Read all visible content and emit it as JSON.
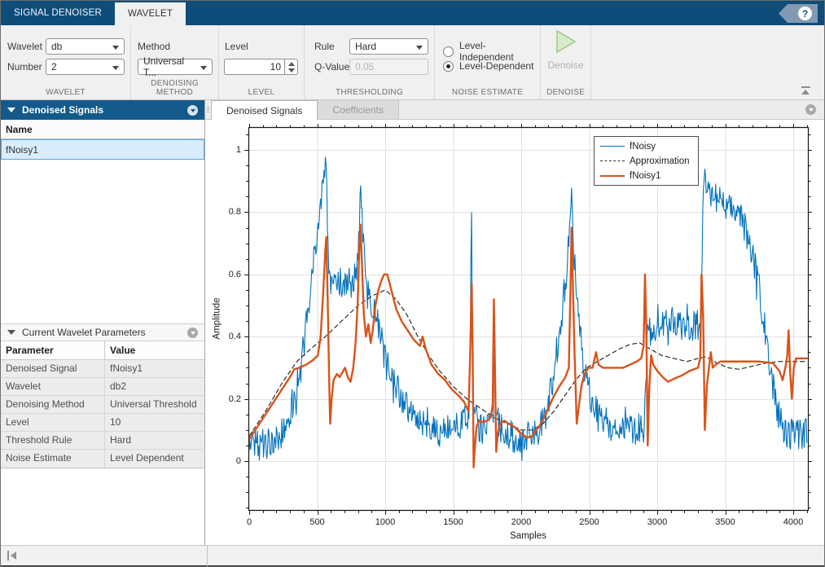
{
  "app": {
    "tabs": [
      {
        "label": "SIGNAL DENOISER",
        "active": false
      },
      {
        "label": "WAVELET",
        "active": true
      }
    ],
    "help_label": "?"
  },
  "toolstrip": {
    "wavelet": {
      "label": "WAVELET",
      "wavelet_label": "Wavelet",
      "wavelet_value": "db",
      "number_label": "Number",
      "number_value": "2"
    },
    "denoising_method": {
      "label": "DENOISING METHOD",
      "method_label": "Method",
      "method_value": "Universal T..."
    },
    "level": {
      "label": "LEVEL",
      "level_label": "Level",
      "level_value": "10"
    },
    "thresholding": {
      "label": "THRESHOLDING",
      "rule_label": "Rule",
      "rule_value": "Hard",
      "qvalue_label": "Q-Value",
      "qvalue_value": "0.05"
    },
    "noise_estimate": {
      "label": "NOISE ESTIMATE",
      "options": [
        {
          "label": "Level-Independent",
          "selected": false
        },
        {
          "label": "Level-Dependent",
          "selected": true
        }
      ]
    },
    "denoise": {
      "label": "DENOISE",
      "button_label": "Denoise",
      "enabled": false
    }
  },
  "left_panel": {
    "signals_panel": {
      "title": "Denoised Signals",
      "column_header": "Name",
      "rows": [
        {
          "name": "fNoisy1",
          "selected": true
        }
      ]
    },
    "parameters_panel": {
      "title": "Current Wavelet Parameters",
      "columns": [
        "Parameter",
        "Value"
      ],
      "rows": [
        [
          "Denoised Signal",
          "fNoisy1"
        ],
        [
          "Wavelet",
          "db2"
        ],
        [
          "Denoising Method",
          "Universal Threshold"
        ],
        [
          "Level",
          "10"
        ],
        [
          "Threshold Rule",
          "Hard"
        ],
        [
          "Noise Estimate",
          "Level Dependent"
        ]
      ]
    }
  },
  "document": {
    "tabs": [
      {
        "label": "Denoised Signals",
        "active": true
      },
      {
        "label": "Coefficients",
        "active": false
      }
    ]
  },
  "chart_data": {
    "type": "line",
    "title": "",
    "xlabel": "Samples",
    "ylabel": "Amplitude",
    "xlim": [
      0,
      4100
    ],
    "ylim": [
      -0.16,
      1.07
    ],
    "x_ticks": [
      0,
      500,
      1000,
      1500,
      2000,
      2500,
      3000,
      3500,
      4000
    ],
    "y_ticks": [
      0,
      0.2,
      0.4,
      0.6,
      0.8,
      1
    ],
    "x_minor_step": 100,
    "y_minor_step": 0.05,
    "grid": true,
    "legend_position": "north",
    "grid_color": "#e2e2e2",
    "series": [
      {
        "name": "fNoisy",
        "color": "#0072BD",
        "style": "solid",
        "width": 1.1,
        "noise_amplitude": 0.05,
        "noise_step": 5,
        "points": [
          [
            0,
            0.06
          ],
          [
            80,
            0.05
          ],
          [
            160,
            0.06
          ],
          [
            230,
            0.08
          ],
          [
            300,
            0.14
          ],
          [
            350,
            0.2
          ],
          [
            410,
            0.4
          ],
          [
            460,
            0.6
          ],
          [
            520,
            0.8
          ],
          [
            550,
            0.9
          ],
          [
            566,
            0.97
          ],
          [
            578,
            0.72
          ],
          [
            590,
            0.58
          ],
          [
            610,
            0.55
          ],
          [
            650,
            0.58
          ],
          [
            700,
            0.56
          ],
          [
            750,
            0.55
          ],
          [
            785,
            0.6
          ],
          [
            805,
            0.7
          ],
          [
            820,
            0.87
          ],
          [
            838,
            0.72
          ],
          [
            860,
            0.6
          ],
          [
            885,
            0.52
          ],
          [
            920,
            0.47
          ],
          [
            960,
            0.42
          ],
          [
            1000,
            0.34
          ],
          [
            1050,
            0.27
          ],
          [
            1100,
            0.22
          ],
          [
            1160,
            0.17
          ],
          [
            1240,
            0.12
          ],
          [
            1320,
            0.1
          ],
          [
            1400,
            0.09
          ],
          [
            1480,
            0.1
          ],
          [
            1560,
            0.12
          ],
          [
            1615,
            0.14
          ],
          [
            1626,
            0.35
          ],
          [
            1633,
            0.92
          ],
          [
            1640,
            0.35
          ],
          [
            1655,
            0.14
          ],
          [
            1700,
            0.1
          ],
          [
            1760,
            0.11
          ],
          [
            1796,
            0.13
          ],
          [
            1802,
            0.52
          ],
          [
            1809,
            0.14
          ],
          [
            1860,
            0.1
          ],
          [
            1930,
            0.08
          ],
          [
            2000,
            0.07
          ],
          [
            2060,
            0.08
          ],
          [
            2120,
            0.1
          ],
          [
            2180,
            0.15
          ],
          [
            2230,
            0.25
          ],
          [
            2280,
            0.4
          ],
          [
            2330,
            0.6
          ],
          [
            2368,
            0.85
          ],
          [
            2390,
            0.65
          ],
          [
            2420,
            0.45
          ],
          [
            2460,
            0.3
          ],
          [
            2510,
            0.2
          ],
          [
            2560,
            0.15
          ],
          [
            2640,
            0.12
          ],
          [
            2730,
            0.1
          ],
          [
            2820,
            0.1
          ],
          [
            2900,
            0.11
          ],
          [
            2918,
            0.25
          ],
          [
            2928,
            0.42
          ],
          [
            3000,
            0.42
          ],
          [
            3060,
            0.44
          ],
          [
            3120,
            0.45
          ],
          [
            3200,
            0.42
          ],
          [
            3260,
            0.43
          ],
          [
            3320,
            0.44
          ],
          [
            3332,
            0.68
          ],
          [
            3338,
            0.9
          ],
          [
            3400,
            0.86
          ],
          [
            3470,
            0.83
          ],
          [
            3540,
            0.81
          ],
          [
            3610,
            0.78
          ],
          [
            3660,
            0.73
          ],
          [
            3700,
            0.67
          ],
          [
            3740,
            0.58
          ],
          [
            3780,
            0.46
          ],
          [
            3820,
            0.34
          ],
          [
            3860,
            0.22
          ],
          [
            3900,
            0.13
          ],
          [
            3950,
            0.09
          ],
          [
            4020,
            0.08
          ],
          [
            4100,
            0.09
          ]
        ]
      },
      {
        "name": "Approximation",
        "color": "#2b2b2b",
        "style": "dashed",
        "width": 1.2,
        "points": [
          [
            0,
            0.08
          ],
          [
            120,
            0.16
          ],
          [
            240,
            0.25
          ],
          [
            350,
            0.32
          ],
          [
            450,
            0.36
          ],
          [
            560,
            0.4
          ],
          [
            680,
            0.45
          ],
          [
            800,
            0.5
          ],
          [
            900,
            0.53
          ],
          [
            1000,
            0.55
          ],
          [
            1080,
            0.52
          ],
          [
            1160,
            0.47
          ],
          [
            1240,
            0.4
          ],
          [
            1320,
            0.34
          ],
          [
            1400,
            0.29
          ],
          [
            1500,
            0.24
          ],
          [
            1600,
            0.2
          ],
          [
            1700,
            0.17
          ],
          [
            1800,
            0.14
          ],
          [
            1900,
            0.12
          ],
          [
            2000,
            0.1
          ],
          [
            2080,
            0.1
          ],
          [
            2160,
            0.12
          ],
          [
            2240,
            0.16
          ],
          [
            2320,
            0.21
          ],
          [
            2400,
            0.26
          ],
          [
            2480,
            0.3
          ],
          [
            2560,
            0.32
          ],
          [
            2640,
            0.34
          ],
          [
            2720,
            0.36
          ],
          [
            2800,
            0.375
          ],
          [
            2870,
            0.38
          ],
          [
            2950,
            0.36
          ],
          [
            3030,
            0.34
          ],
          [
            3120,
            0.33
          ],
          [
            3220,
            0.32
          ],
          [
            3300,
            0.33
          ],
          [
            3360,
            0.335
          ],
          [
            3440,
            0.315
          ],
          [
            3520,
            0.3
          ],
          [
            3600,
            0.295
          ],
          [
            3700,
            0.305
          ],
          [
            3800,
            0.315
          ],
          [
            3900,
            0.32
          ],
          [
            4000,
            0.32
          ],
          [
            4100,
            0.32
          ]
        ]
      },
      {
        "name": "fNoisy1",
        "color": "#D95319",
        "style": "solid",
        "width": 2.4,
        "points": [
          [
            0,
            0.07
          ],
          [
            60,
            0.11
          ],
          [
            120,
            0.15
          ],
          [
            180,
            0.19
          ],
          [
            240,
            0.23
          ],
          [
            300,
            0.27
          ],
          [
            330,
            0.295
          ],
          [
            370,
            0.3
          ],
          [
            420,
            0.31
          ],
          [
            470,
            0.325
          ],
          [
            505,
            0.34
          ],
          [
            525,
            0.4
          ],
          [
            545,
            0.55
          ],
          [
            560,
            0.68
          ],
          [
            567,
            0.72
          ],
          [
            577,
            0.52
          ],
          [
            587,
            0.28
          ],
          [
            595,
            0.12
          ],
          [
            606,
            0.2
          ],
          [
            620,
            0.26
          ],
          [
            645,
            0.28
          ],
          [
            665,
            0.27
          ],
          [
            685,
            0.285
          ],
          [
            705,
            0.3
          ],
          [
            725,
            0.27
          ],
          [
            745,
            0.255
          ],
          [
            765,
            0.3
          ],
          [
            782,
            0.38
          ],
          [
            797,
            0.5
          ],
          [
            812,
            0.72
          ],
          [
            818,
            0.76
          ],
          [
            830,
            0.62
          ],
          [
            843,
            0.47
          ],
          [
            858,
            0.4
          ],
          [
            876,
            0.44
          ],
          [
            893,
            0.38
          ],
          [
            908,
            0.42
          ],
          [
            928,
            0.5
          ],
          [
            950,
            0.55
          ],
          [
            972,
            0.58
          ],
          [
            992,
            0.6
          ],
          [
            1015,
            0.6
          ],
          [
            1045,
            0.55
          ],
          [
            1080,
            0.49
          ],
          [
            1120,
            0.45
          ],
          [
            1165,
            0.42
          ],
          [
            1210,
            0.39
          ],
          [
            1255,
            0.37
          ],
          [
            1275,
            0.4
          ],
          [
            1298,
            0.36
          ],
          [
            1340,
            0.31
          ],
          [
            1390,
            0.28
          ],
          [
            1440,
            0.26
          ],
          [
            1490,
            0.23
          ],
          [
            1540,
            0.21
          ],
          [
            1580,
            0.19
          ],
          [
            1612,
            0.16
          ],
          [
            1622,
            0.3
          ],
          [
            1630,
            0.45
          ],
          [
            1636,
            0.57
          ],
          [
            1643,
            0.35
          ],
          [
            1650,
            -0.02
          ],
          [
            1660,
            0.05
          ],
          [
            1672,
            0.11
          ],
          [
            1690,
            0.13
          ],
          [
            1720,
            0.125
          ],
          [
            1750,
            0.13
          ],
          [
            1775,
            0.14
          ],
          [
            1790,
            0.18
          ],
          [
            1799,
            0.52
          ],
          [
            1807,
            0.3
          ],
          [
            1816,
            0.03
          ],
          [
            1828,
            0.09
          ],
          [
            1845,
            0.12
          ],
          [
            1875,
            0.13
          ],
          [
            1910,
            0.12
          ],
          [
            1950,
            0.11
          ],
          [
            1995,
            0.09
          ],
          [
            2040,
            0.075
          ],
          [
            2080,
            0.08
          ],
          [
            2130,
            0.11
          ],
          [
            2180,
            0.15
          ],
          [
            2230,
            0.2
          ],
          [
            2280,
            0.24
          ],
          [
            2325,
            0.27
          ],
          [
            2350,
            0.3
          ],
          [
            2362,
            0.55
          ],
          [
            2370,
            0.75
          ],
          [
            2379,
            0.58
          ],
          [
            2392,
            0.35
          ],
          [
            2408,
            0.12
          ],
          [
            2422,
            0.17
          ],
          [
            2442,
            0.24
          ],
          [
            2465,
            0.28
          ],
          [
            2495,
            0.3
          ],
          [
            2525,
            0.3
          ],
          [
            2550,
            0.35
          ],
          [
            2568,
            0.31
          ],
          [
            2600,
            0.3
          ],
          [
            2650,
            0.3
          ],
          [
            2700,
            0.3
          ],
          [
            2750,
            0.3
          ],
          [
            2800,
            0.31
          ],
          [
            2850,
            0.32
          ],
          [
            2882,
            0.33
          ],
          [
            2900,
            0.37
          ],
          [
            2910,
            0.6
          ],
          [
            2920,
            0.42
          ],
          [
            2930,
            0.05
          ],
          [
            2942,
            0.24
          ],
          [
            2955,
            0.34
          ],
          [
            2970,
            0.31
          ],
          [
            3000,
            0.29
          ],
          [
            3040,
            0.27
          ],
          [
            3080,
            0.255
          ],
          [
            3125,
            0.265
          ],
          [
            3180,
            0.275
          ],
          [
            3240,
            0.29
          ],
          [
            3300,
            0.3
          ],
          [
            3316,
            0.33
          ],
          [
            3326,
            0.6
          ],
          [
            3338,
            0.46
          ],
          [
            3350,
            0.1
          ],
          [
            3365,
            0.24
          ],
          [
            3380,
            0.3
          ],
          [
            3394,
            0.35
          ],
          [
            3408,
            0.3
          ],
          [
            3430,
            0.31
          ],
          [
            3465,
            0.32
          ],
          [
            3550,
            0.32
          ],
          [
            3650,
            0.32
          ],
          [
            3750,
            0.32
          ],
          [
            3850,
            0.315
          ],
          [
            3898,
            0.29
          ],
          [
            3922,
            0.26
          ],
          [
            3942,
            0.3
          ],
          [
            3956,
            0.34
          ],
          [
            3966,
            0.42
          ],
          [
            3978,
            0.28
          ],
          [
            3990,
            0.2
          ],
          [
            4004,
            0.3
          ],
          [
            4020,
            0.33
          ],
          [
            4060,
            0.33
          ],
          [
            4100,
            0.33
          ]
        ]
      }
    ]
  },
  "colors": {
    "titlebar": "#0e4c79",
    "toolstrip_bg": "#f0f0f0",
    "panel_header_blue": "#135a8a",
    "selection_bg": "#d9edfc",
    "selection_border": "#56a7e3",
    "series_blue": "#0072BD",
    "series_orange": "#D95319"
  }
}
